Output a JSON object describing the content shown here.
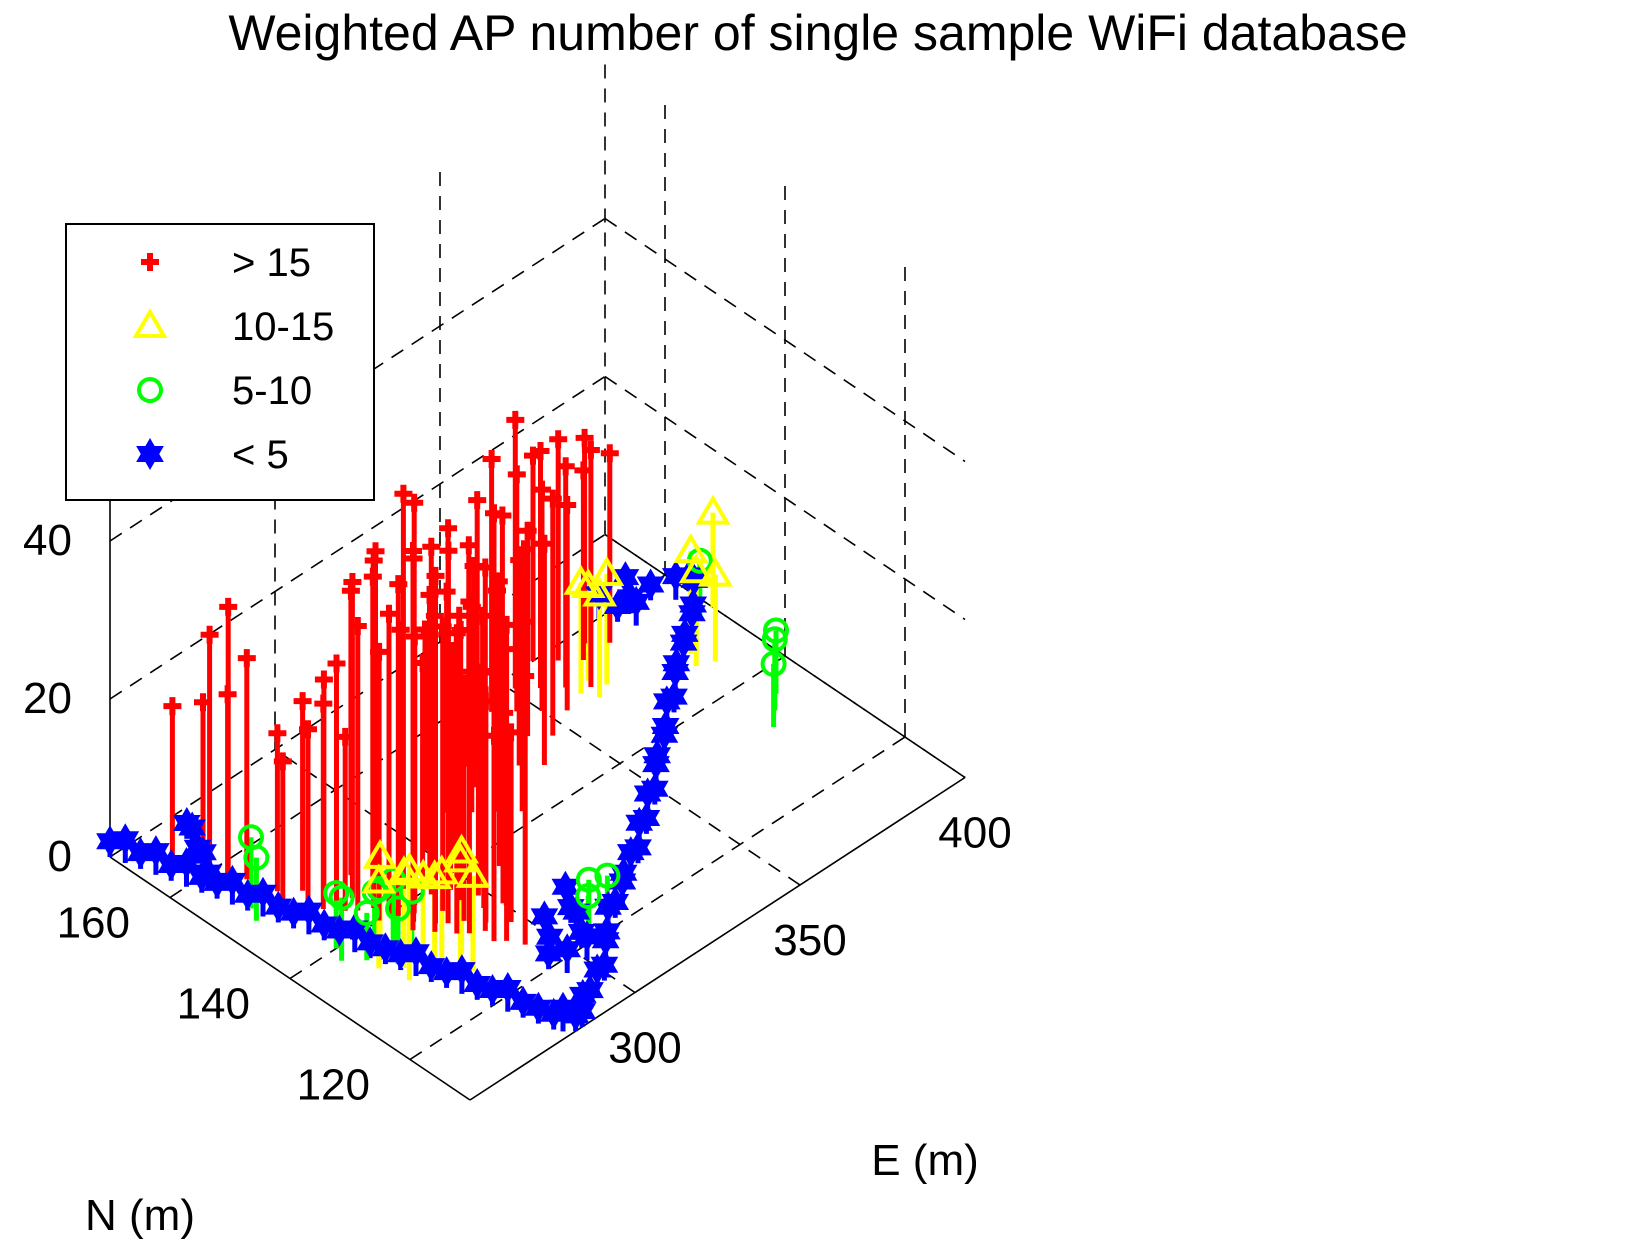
{
  "chart_data": {
    "type": "scatter",
    "subtype": "stem3",
    "title": "Weighted AP number of single sample WiFi database",
    "xlabel": "E (m)",
    "ylabel": "N (m)",
    "zlabel": "",
    "x_ticks": [
      300,
      350,
      400
    ],
    "y_ticks": [
      120,
      140,
      160
    ],
    "z_ticks": [
      0,
      20,
      40
    ],
    "xlim": [
      250,
      400
    ],
    "ylim": [
      110,
      170
    ],
    "zlim": [
      0,
      60
    ],
    "grid": true,
    "legend_position": "top-left",
    "colors": {
      "red": "#ff0000",
      "yellow": "#ffff00",
      "green": "#00ff00",
      "blue": "#0000ff"
    },
    "series": [
      {
        "name": "> 15",
        "color": "#ff0000",
        "marker": "plus",
        "points": [
          [
            258,
            164,
            20
          ],
          [
            260,
            160,
            22
          ],
          [
            262,
            157,
            24
          ],
          [
            262,
            160,
            30
          ],
          [
            264,
            158,
            34
          ],
          [
            266,
            156,
            28
          ],
          [
            266,
            150,
            18
          ],
          [
            268,
            152,
            20
          ],
          [
            270,
            148,
            22
          ],
          [
            271,
            146,
            26
          ],
          [
            272,
            150,
            24
          ],
          [
            273,
            147,
            28
          ],
          [
            274,
            144,
            22
          ],
          [
            275,
            146,
            30
          ],
          [
            276,
            143,
            36
          ],
          [
            277,
            140,
            34
          ],
          [
            278,
            145,
            40
          ],
          [
            279,
            142,
            44
          ],
          [
            280,
            140,
            38
          ],
          [
            280,
            136,
            48
          ],
          [
            281,
            139,
            42
          ],
          [
            282,
            137,
            46
          ],
          [
            283,
            134,
            40
          ],
          [
            284,
            138,
            52
          ],
          [
            285,
            135,
            44
          ],
          [
            286,
            132,
            38
          ],
          [
            286,
            139,
            34
          ],
          [
            287,
            134,
            50
          ],
          [
            288,
            131,
            42
          ],
          [
            289,
            136,
            36
          ],
          [
            290,
            133,
            30
          ],
          [
            290,
            128,
            26
          ],
          [
            291,
            130,
            46
          ],
          [
            292,
            127,
            40
          ],
          [
            293,
            131,
            28
          ],
          [
            294,
            125,
            34
          ],
          [
            285,
            145,
            42
          ],
          [
            288,
            142,
            50
          ],
          [
            291,
            139,
            44
          ],
          [
            294,
            136,
            36
          ],
          [
            296,
            133,
            30
          ],
          [
            297,
            129,
            24
          ],
          [
            283,
            148,
            36
          ],
          [
            286,
            146,
            38
          ],
          [
            289,
            143,
            32
          ],
          [
            292,
            141,
            28
          ],
          [
            295,
            138,
            26
          ],
          [
            298,
            135,
            22
          ],
          [
            300,
            132,
            20
          ],
          [
            296,
            142,
            30
          ],
          [
            299,
            139,
            26
          ],
          [
            302,
            137,
            24
          ],
          [
            304,
            134,
            22
          ],
          [
            300,
            145,
            28
          ],
          [
            303,
            142,
            26
          ],
          [
            306,
            139,
            24
          ],
          [
            308,
            137,
            22
          ],
          [
            305,
            147,
            30
          ],
          [
            309,
            144,
            26
          ],
          [
            312,
            142,
            28
          ],
          [
            315,
            140,
            24
          ],
          [
            312,
            148,
            28
          ],
          [
            316,
            146,
            26
          ],
          [
            320,
            144,
            28
          ],
          [
            324,
            142,
            24
          ],
          [
            318,
            151,
            30
          ],
          [
            322,
            149,
            28
          ],
          [
            326,
            147,
            26
          ],
          [
            330,
            145,
            30
          ],
          [
            326,
            152,
            28
          ],
          [
            330,
            150,
            32
          ],
          [
            334,
            148,
            26
          ],
          [
            338,
            146,
            28
          ],
          [
            334,
            155,
            30
          ],
          [
            338,
            153,
            28
          ],
          [
            342,
            151,
            26
          ],
          [
            346,
            149,
            30
          ],
          [
            342,
            157,
            32
          ],
          [
            346,
            155,
            30
          ],
          [
            350,
            153,
            28
          ],
          [
            354,
            151,
            26
          ],
          [
            351,
            158,
            34
          ],
          [
            355,
            156,
            30
          ],
          [
            359,
            154,
            28
          ],
          [
            363,
            152,
            30
          ],
          [
            360,
            160,
            26
          ],
          [
            364,
            158,
            28
          ],
          [
            368,
            156,
            24
          ],
          [
            372,
            158,
            26
          ],
          [
            376,
            156,
            24
          ]
        ]
      },
      {
        "name": "10-15",
        "color": "#ffff00",
        "marker": "triangle",
        "points": [
          [
            268,
            130,
            14
          ],
          [
            270,
            132,
            12
          ],
          [
            272,
            128,
            13
          ],
          [
            274,
            131,
            11
          ],
          [
            276,
            129,
            12
          ],
          [
            278,
            127,
            14
          ],
          [
            280,
            126,
            12
          ],
          [
            282,
            129,
            13
          ],
          [
            266,
            134,
            11
          ],
          [
            270,
            136,
            12
          ],
          [
            360,
            152,
            14
          ],
          [
            362,
            150,
            13
          ],
          [
            364,
            153,
            12
          ],
          [
            366,
            151,
            14
          ],
          [
            384,
            146,
            12
          ],
          [
            386,
            148,
            13
          ],
          [
            388,
            145,
            11
          ],
          [
            400,
            152,
            12
          ]
        ]
      },
      {
        "name": "5-10",
        "color": "#00ff00",
        "marker": "circle",
        "points": [
          [
            262,
            138,
            8
          ],
          [
            264,
            140,
            7
          ],
          [
            266,
            136,
            6
          ],
          [
            268,
            135,
            9
          ],
          [
            270,
            133,
            7
          ],
          [
            258,
            150,
            8
          ],
          [
            260,
            152,
            9
          ],
          [
            272,
            138,
            6
          ],
          [
            274,
            136,
            8
          ],
          [
            276,
            134,
            7
          ],
          [
            304,
            120,
            6
          ],
          [
            306,
            121,
            7
          ],
          [
            308,
            119,
            8
          ],
          [
            382,
            132,
            8
          ],
          [
            386,
            134,
            9
          ],
          [
            390,
            136,
            8
          ],
          [
            396,
            152,
            7
          ]
        ]
      },
      {
        "name": "< 5",
        "color": "#0000ff",
        "marker": "hexagram",
        "points": [
          [
            250,
            170,
            2
          ],
          [
            251,
            168,
            3
          ],
          [
            252,
            166,
            2
          ],
          [
            253,
            164,
            3
          ],
          [
            254,
            162,
            2
          ],
          [
            255,
            160,
            3
          ],
          [
            256,
            158,
            2
          ],
          [
            257,
            156,
            2
          ],
          [
            258,
            154,
            3
          ],
          [
            259,
            152,
            2
          ],
          [
            260,
            150,
            3
          ],
          [
            261,
            148,
            2
          ],
          [
            262,
            146,
            2
          ],
          [
            263,
            144,
            3
          ],
          [
            264,
            142,
            2
          ],
          [
            265,
            140,
            2
          ],
          [
            266,
            138,
            3
          ],
          [
            267,
            136,
            2
          ],
          [
            268,
            134,
            2
          ],
          [
            269,
            132,
            2
          ],
          [
            270,
            130,
            3
          ],
          [
            271,
            128,
            2
          ],
          [
            272,
            126,
            2
          ],
          [
            273,
            124,
            3
          ],
          [
            274,
            122,
            2
          ],
          [
            275,
            120,
            2
          ],
          [
            276,
            118,
            3
          ],
          [
            277,
            116,
            2
          ],
          [
            278,
            114,
            2
          ],
          [
            279,
            112,
            2
          ],
          [
            280,
            111,
            3
          ],
          [
            282,
            110,
            2
          ],
          [
            284,
            110,
            2
          ],
          [
            286,
            111,
            3
          ],
          [
            290,
            112,
            2
          ],
          [
            294,
            113,
            3
          ],
          [
            298,
            114,
            2
          ],
          [
            302,
            116,
            3
          ],
          [
            306,
            118,
            2
          ],
          [
            310,
            120,
            3
          ],
          [
            314,
            121,
            2
          ],
          [
            318,
            122,
            3
          ],
          [
            322,
            124,
            2
          ],
          [
            326,
            125,
            3
          ],
          [
            330,
            126,
            2
          ],
          [
            334,
            128,
            3
          ],
          [
            338,
            129,
            2
          ],
          [
            342,
            131,
            3
          ],
          [
            346,
            132,
            2
          ],
          [
            350,
            134,
            3
          ],
          [
            354,
            136,
            2
          ],
          [
            358,
            137,
            3
          ],
          [
            362,
            139,
            2
          ],
          [
            366,
            141,
            3
          ],
          [
            370,
            142,
            2
          ],
          [
            374,
            144,
            3
          ],
          [
            378,
            146,
            2
          ],
          [
            382,
            147,
            3
          ],
          [
            386,
            149,
            2
          ],
          [
            390,
            150,
            3
          ],
          [
            394,
            152,
            2
          ],
          [
            398,
            154,
            3
          ],
          [
            400,
            156,
            2
          ],
          [
            258,
            158,
            2
          ],
          [
            260,
            160,
            3
          ],
          [
            262,
            162,
            2
          ],
          [
            264,
            164,
            3
          ],
          [
            266,
            166,
            2
          ],
          [
            300,
            118,
            3
          ],
          [
            302,
            120,
            2
          ],
          [
            304,
            122,
            3
          ],
          [
            306,
            124,
            2
          ],
          [
            308,
            126,
            3
          ],
          [
            296,
            122,
            2
          ],
          [
            298,
            124,
            3
          ],
          [
            292,
            120,
            2
          ],
          [
            294,
            118,
            3
          ],
          [
            380,
            160,
            3
          ],
          [
            382,
            158,
            2
          ],
          [
            384,
            156,
            3
          ],
          [
            386,
            158,
            2
          ],
          [
            388,
            160,
            3
          ],
          [
            392,
            158,
            2
          ],
          [
            396,
            156,
            3
          ]
        ]
      }
    ]
  }
}
